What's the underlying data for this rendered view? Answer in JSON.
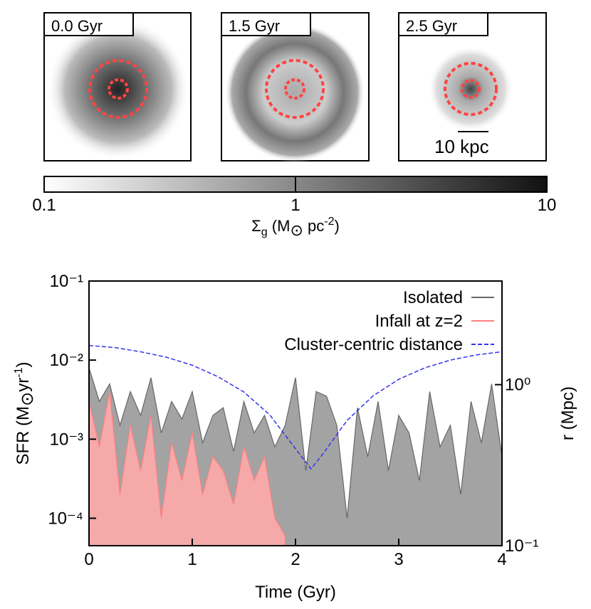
{
  "panels": [
    {
      "label": "0.0 Gyr"
    },
    {
      "label": "1.5 Gyr"
    },
    {
      "label": "2.5 Gyr"
    }
  ],
  "scale_bar": "10 kpc",
  "colorbar": {
    "label": [
      "Σ",
      "g",
      " (M",
      "⊙",
      " pc",
      "-2",
      ")"
    ],
    "lim": [
      0.1,
      10
    ],
    "ticks": [
      0.1,
      1,
      10
    ],
    "log": true
  },
  "chart_data": {
    "type": "area",
    "xlabel": "Time (Gyr)",
    "ylabel": [
      "SFR (M",
      "⊙",
      "yr",
      "-1",
      ")"
    ],
    "y2label": "r (Mpc)",
    "xlim": [
      0,
      4
    ],
    "xticks": [
      0,
      1,
      2,
      3,
      4
    ],
    "ylim": [
      4.5e-05,
      0.1
    ],
    "log_y": true,
    "yticks": [
      {
        "value": 0.0001,
        "label": "10⁻⁴"
      },
      {
        "value": 0.001,
        "label": "10⁻³"
      },
      {
        "value": 0.01,
        "label": "10⁻²"
      },
      {
        "value": 0.1,
        "label": "10⁻¹"
      }
    ],
    "y2lim": [
      0.1,
      4.4
    ],
    "y2ticks": [
      {
        "value": 0.1,
        "label": "10⁻¹"
      },
      {
        "value": 1,
        "label": "10⁰"
      }
    ],
    "legend": "upper right",
    "series": [
      {
        "name": "Isolated",
        "color": "#999999",
        "stroke": "#666666",
        "x": [
          0,
          0.1,
          0.2,
          0.3,
          0.4,
          0.5,
          0.6,
          0.7,
          0.8,
          0.9,
          1.0,
          1.1,
          1.2,
          1.3,
          1.4,
          1.5,
          1.6,
          1.7,
          1.8,
          1.9,
          2.0,
          2.1,
          2.2,
          2.3,
          2.4,
          2.5,
          2.6,
          2.7,
          2.8,
          2.9,
          3.0,
          3.1,
          3.2,
          3.3,
          3.4,
          3.5,
          3.6,
          3.7,
          3.8,
          3.9,
          4.0
        ],
        "values": [
          0.008,
          0.003,
          0.005,
          0.0015,
          0.004,
          0.002,
          0.006,
          0.0012,
          0.003,
          0.0018,
          0.004,
          0.0009,
          0.002,
          0.0025,
          0.0007,
          0.003,
          0.0012,
          0.002,
          0.0008,
          0.0015,
          0.006,
          0.0004,
          0.004,
          0.0035,
          0.0015,
          0.0001,
          0.0025,
          0.0006,
          0.003,
          0.0004,
          0.002,
          0.0012,
          0.0003,
          0.004,
          0.0008,
          0.0015,
          0.0002,
          0.003,
          0.0009,
          0.005,
          0.0006
        ]
      },
      {
        "name": "Infall at z=2",
        "color": "#ffaaaa",
        "stroke": "#ff8080",
        "x": [
          0,
          0.1,
          0.2,
          0.3,
          0.4,
          0.5,
          0.6,
          0.7,
          0.8,
          0.9,
          1.0,
          1.1,
          1.2,
          1.3,
          1.4,
          1.5,
          1.6,
          1.7,
          1.8,
          1.9
        ],
        "values": [
          0.003,
          0.0008,
          0.004,
          0.0002,
          0.0015,
          0.0004,
          0.002,
          0.0001,
          0.0009,
          0.0003,
          0.0012,
          0.0002,
          0.0006,
          0.0004,
          0.00015,
          0.0008,
          0.0003,
          0.0006,
          0.0001,
          6e-05
        ]
      },
      {
        "name": "Cluster-centric distance",
        "color": "#3333ee",
        "axis": "y2",
        "dashed": true,
        "x": [
          0,
          0.25,
          0.5,
          0.75,
          1.0,
          1.25,
          1.5,
          1.75,
          2.0,
          2.15,
          2.25,
          2.5,
          2.75,
          3.0,
          3.25,
          3.5,
          3.75,
          4.0
        ],
        "values": [
          1.75,
          1.7,
          1.6,
          1.48,
          1.32,
          1.12,
          0.9,
          0.65,
          0.4,
          0.3,
          0.36,
          0.6,
          0.85,
          1.08,
          1.27,
          1.42,
          1.53,
          1.6
        ]
      }
    ]
  }
}
